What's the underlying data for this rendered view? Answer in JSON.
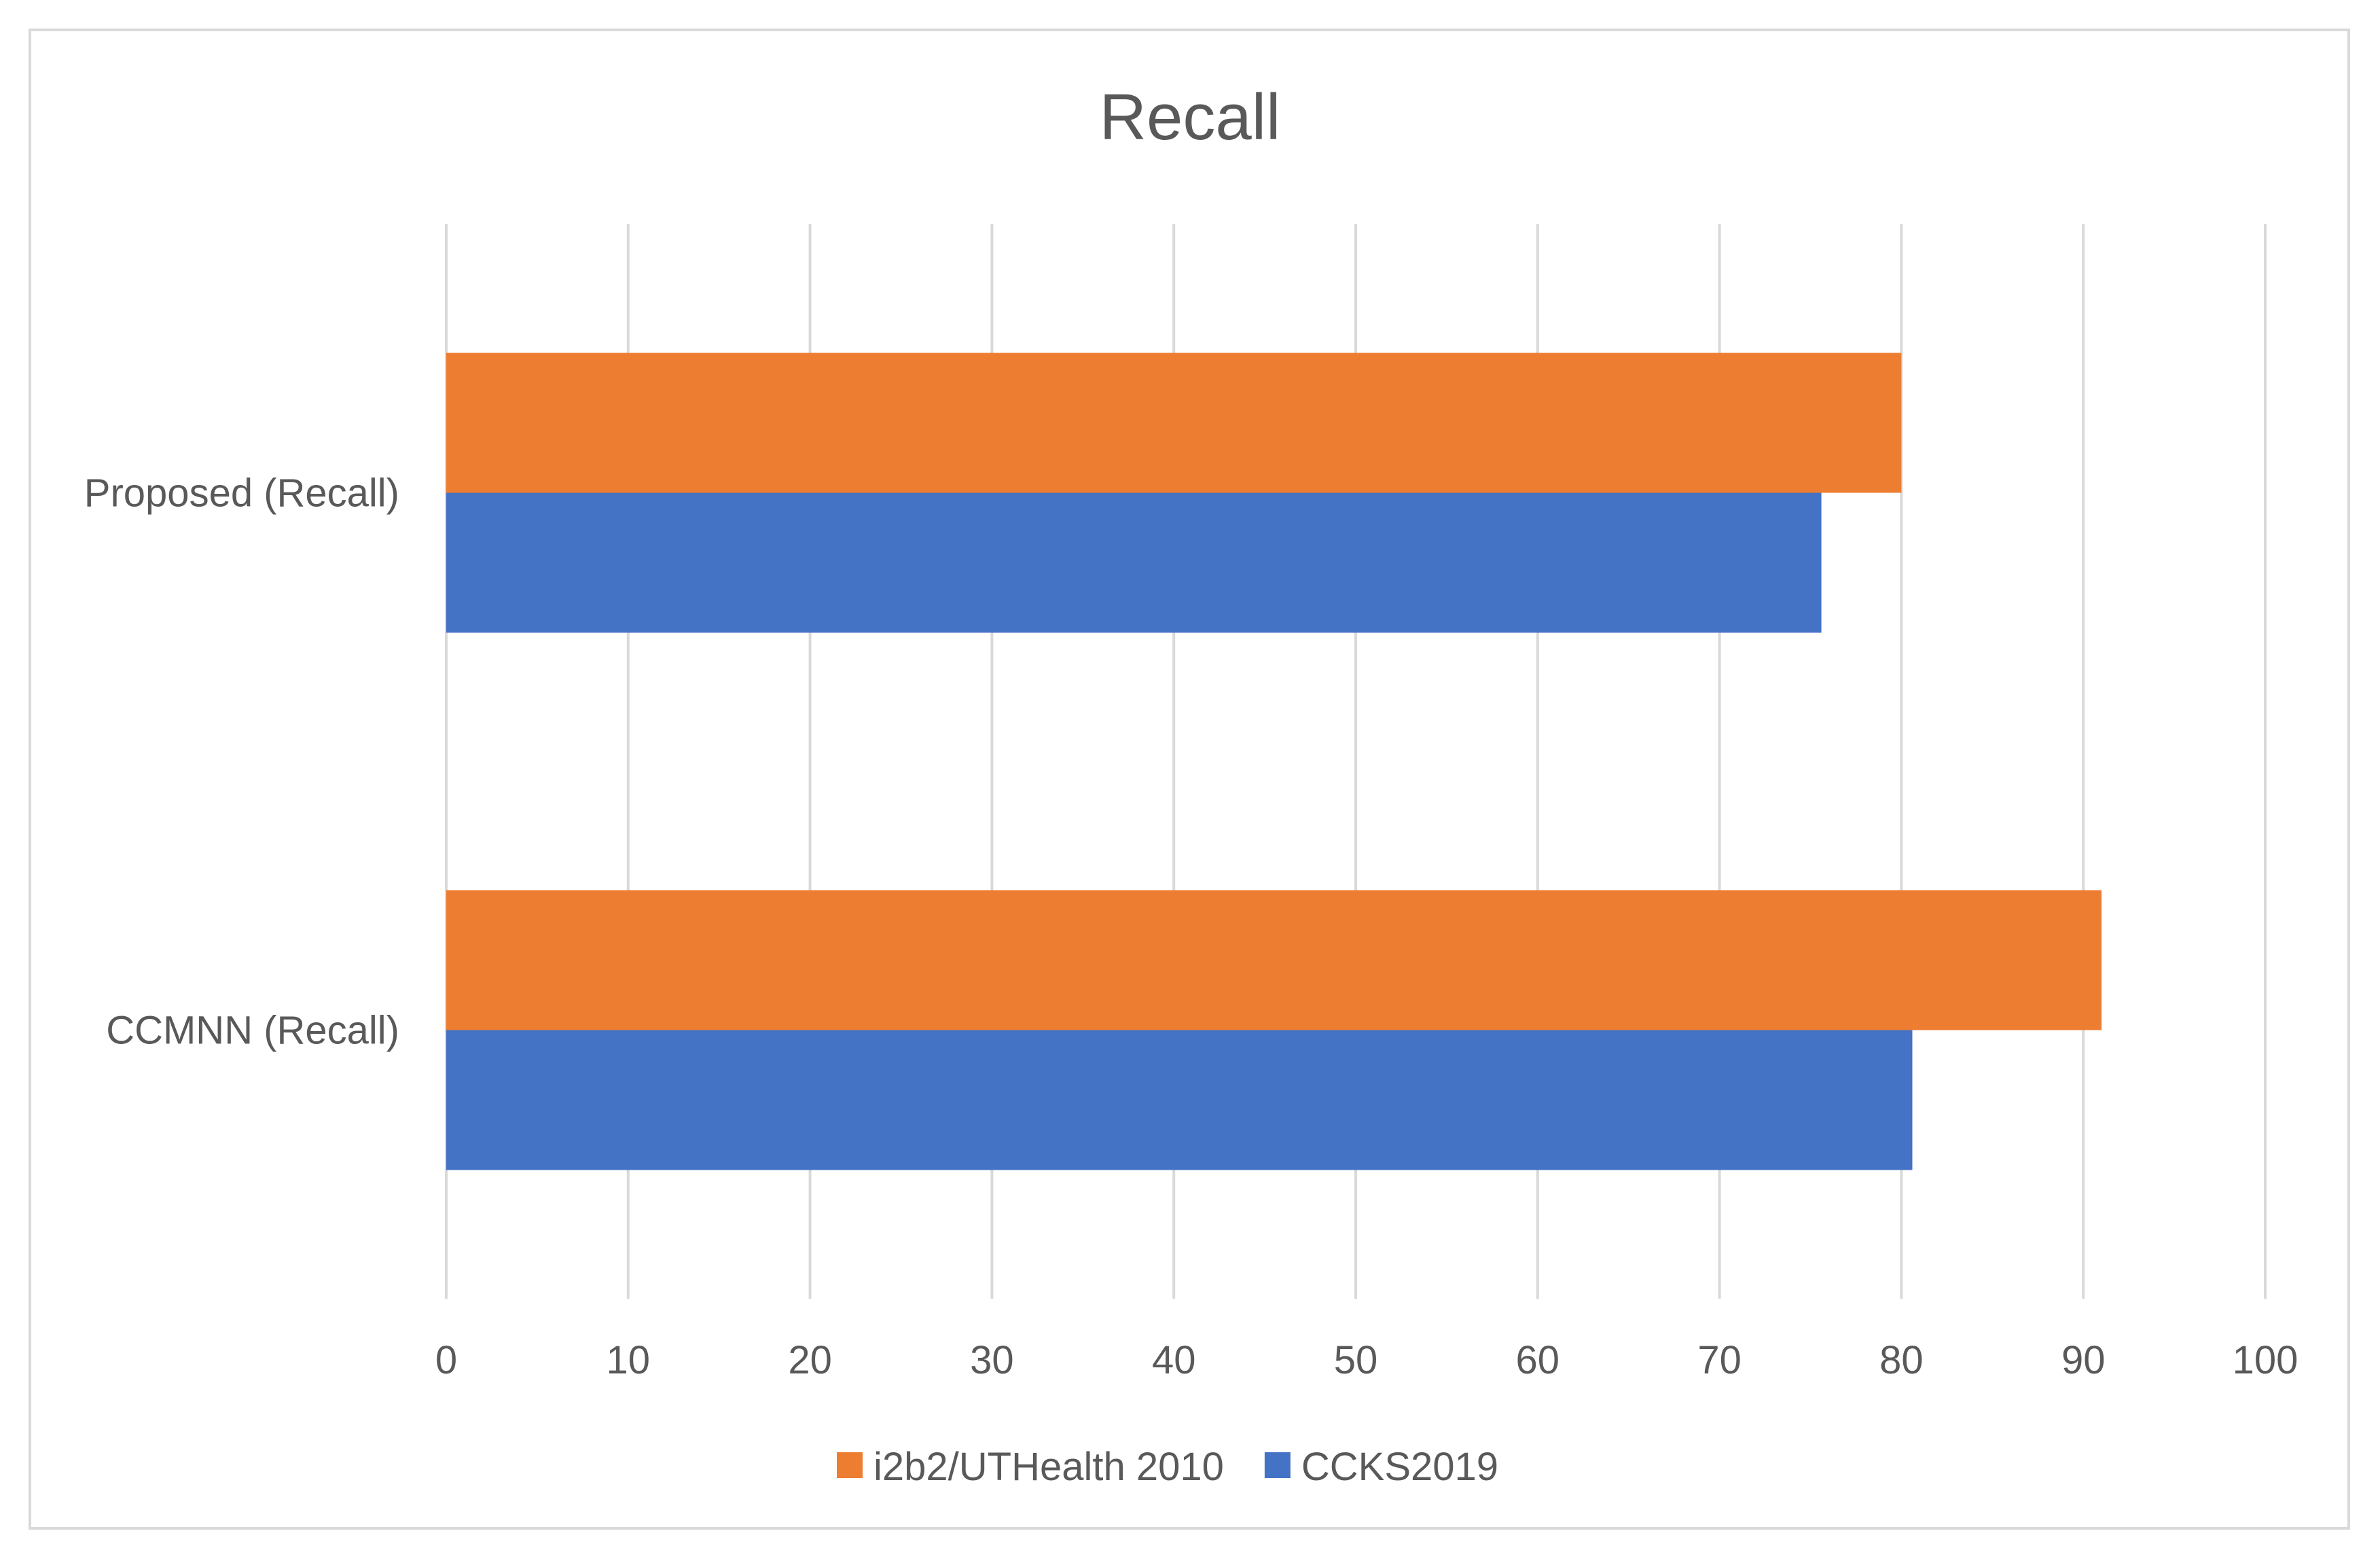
{
  "chart_data": {
    "type": "bar",
    "orientation": "horizontal",
    "title": "Recall",
    "xlabel": "",
    "ylabel": "",
    "categories": [
      "Proposed (Recall)",
      "CCMNN (Recall)"
    ],
    "series": [
      {
        "name": "i2b2/UTHealth 2010",
        "color": "#ED7D31",
        "values": [
          80,
          91
        ]
      },
      {
        "name": "CCKS2019",
        "color": "#4472C4",
        "values": [
          75.6,
          80.6
        ]
      }
    ],
    "xlim": [
      0,
      100
    ],
    "xticks": [
      "0",
      "10",
      "20",
      "30",
      "40",
      "50",
      "60",
      "70",
      "80",
      "90",
      "100"
    ],
    "grid": "vertical",
    "legend_position": "bottom"
  }
}
